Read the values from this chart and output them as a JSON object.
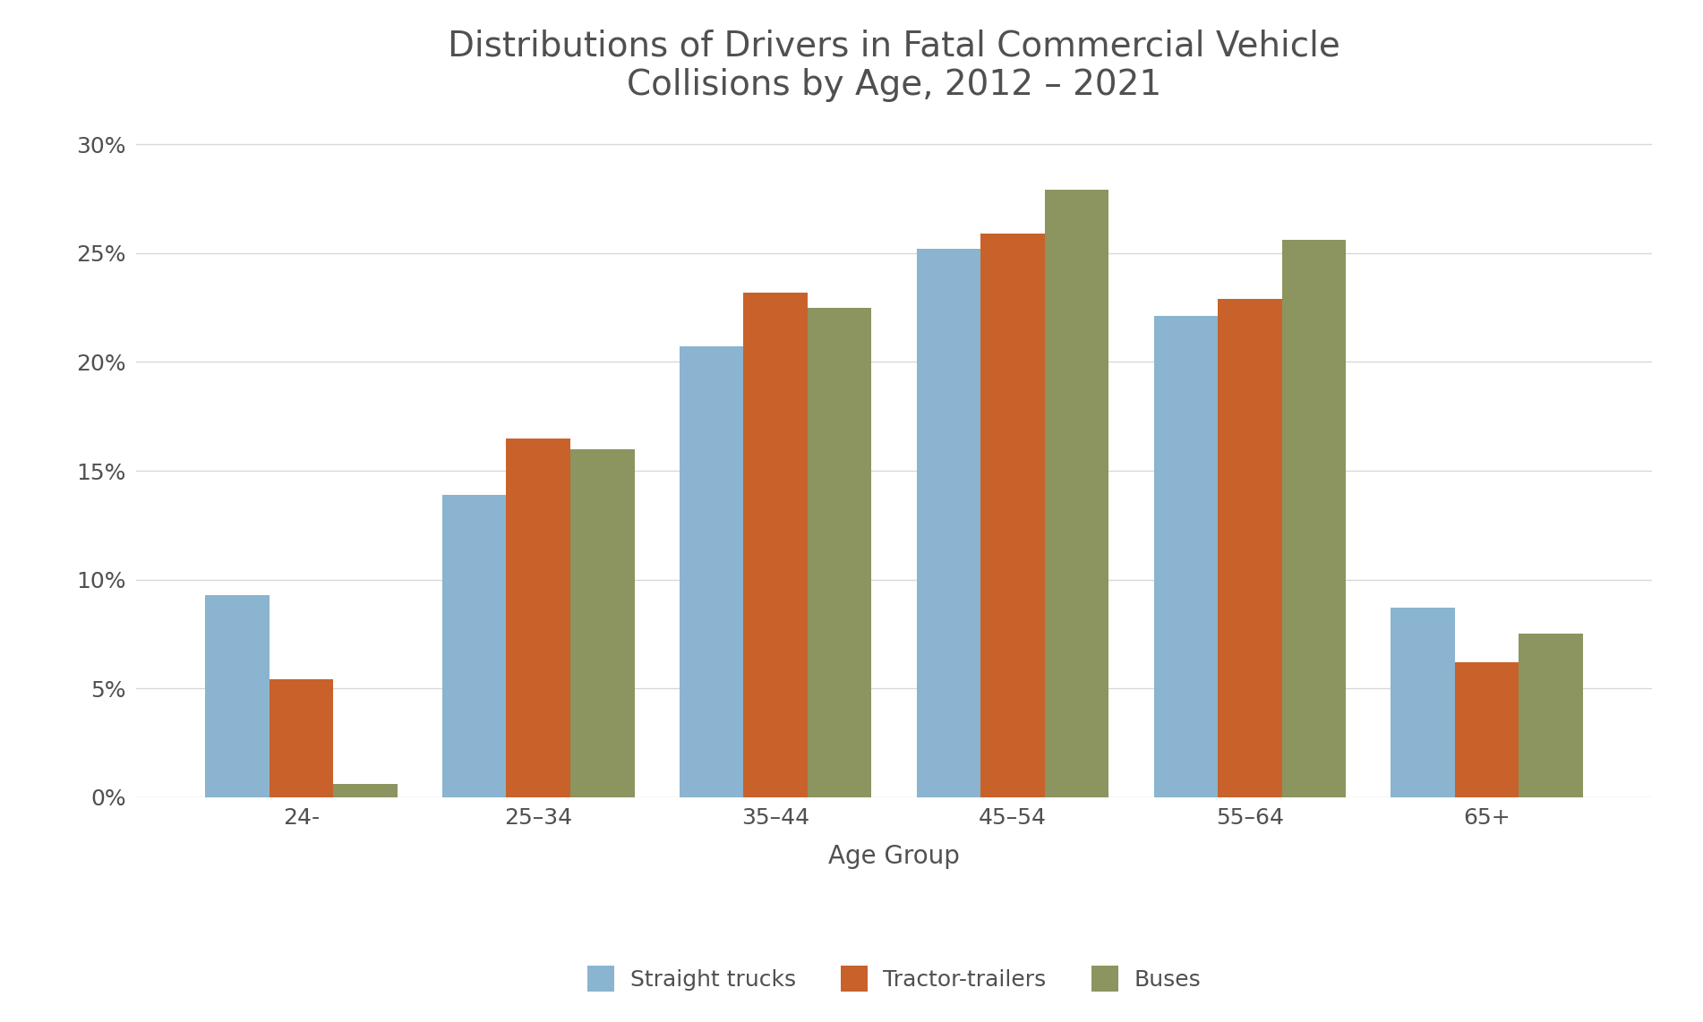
{
  "title": "Distributions of Drivers in Fatal Commercial Vehicle\nCollisions by Age, 2012 – 2021",
  "xlabel": "Age Group",
  "ylabel": "",
  "categories": [
    "24-",
    "25–34",
    "35–44",
    "45–54",
    "55–64",
    "65+"
  ],
  "series": {
    "Straight trucks": [
      9.3,
      13.9,
      20.7,
      25.2,
      22.1,
      8.7
    ],
    "Tractor-trailers": [
      5.4,
      16.5,
      23.2,
      25.9,
      22.9,
      6.2
    ],
    "Buses": [
      0.6,
      16.0,
      22.5,
      27.9,
      25.6,
      7.5
    ]
  },
  "colors": {
    "Straight trucks": "#8ab4d0",
    "Tractor-trailers": "#c8622a",
    "Buses": "#8c9460"
  },
  "ylim": [
    0,
    31
  ],
  "yticks": [
    0,
    5,
    10,
    15,
    20,
    25,
    30
  ],
  "ytick_labels": [
    "0%",
    "5%",
    "10%",
    "15%",
    "20%",
    "25%",
    "30%"
  ],
  "bar_width": 0.27,
  "background_color": "#ffffff",
  "title_fontsize": 28,
  "axis_label_fontsize": 20,
  "tick_fontsize": 18,
  "legend_fontsize": 18,
  "grid_color": "#d8d8d8",
  "title_color": "#505050",
  "tick_color": "#505050"
}
